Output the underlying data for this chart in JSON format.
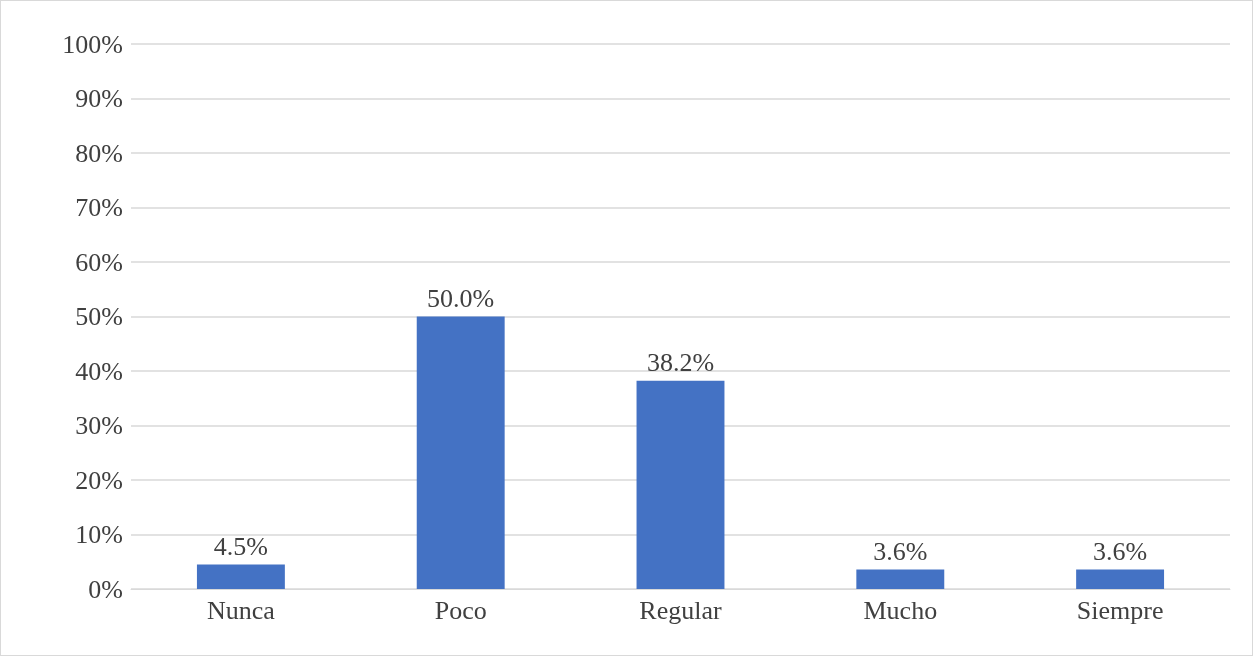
{
  "chart_data": {
    "type": "bar",
    "categories": [
      "Nunca",
      "Poco",
      "Regular",
      "Mucho",
      "Siempre"
    ],
    "values": [
      4.5,
      50.0,
      38.2,
      3.6,
      3.6
    ],
    "value_labels": [
      "4.5%",
      "50.0%",
      "38.2%",
      "3.6%",
      "3.6%"
    ],
    "color": "#4472c4",
    "ylim": [
      0,
      100
    ],
    "yticks": [
      {
        "value": 0,
        "label": "0%"
      },
      {
        "value": 10,
        "label": "10%"
      },
      {
        "value": 20,
        "label": "20%"
      },
      {
        "value": 30,
        "label": "30%"
      },
      {
        "value": 40,
        "label": "40%"
      },
      {
        "value": 50,
        "label": "50%"
      },
      {
        "value": 60,
        "label": "60%"
      },
      {
        "value": 70,
        "label": "70%"
      },
      {
        "value": 80,
        "label": "80%"
      },
      {
        "value": 90,
        "label": "90%"
      },
      {
        "value": 100,
        "label": "100%"
      }
    ],
    "grid": "y"
  }
}
